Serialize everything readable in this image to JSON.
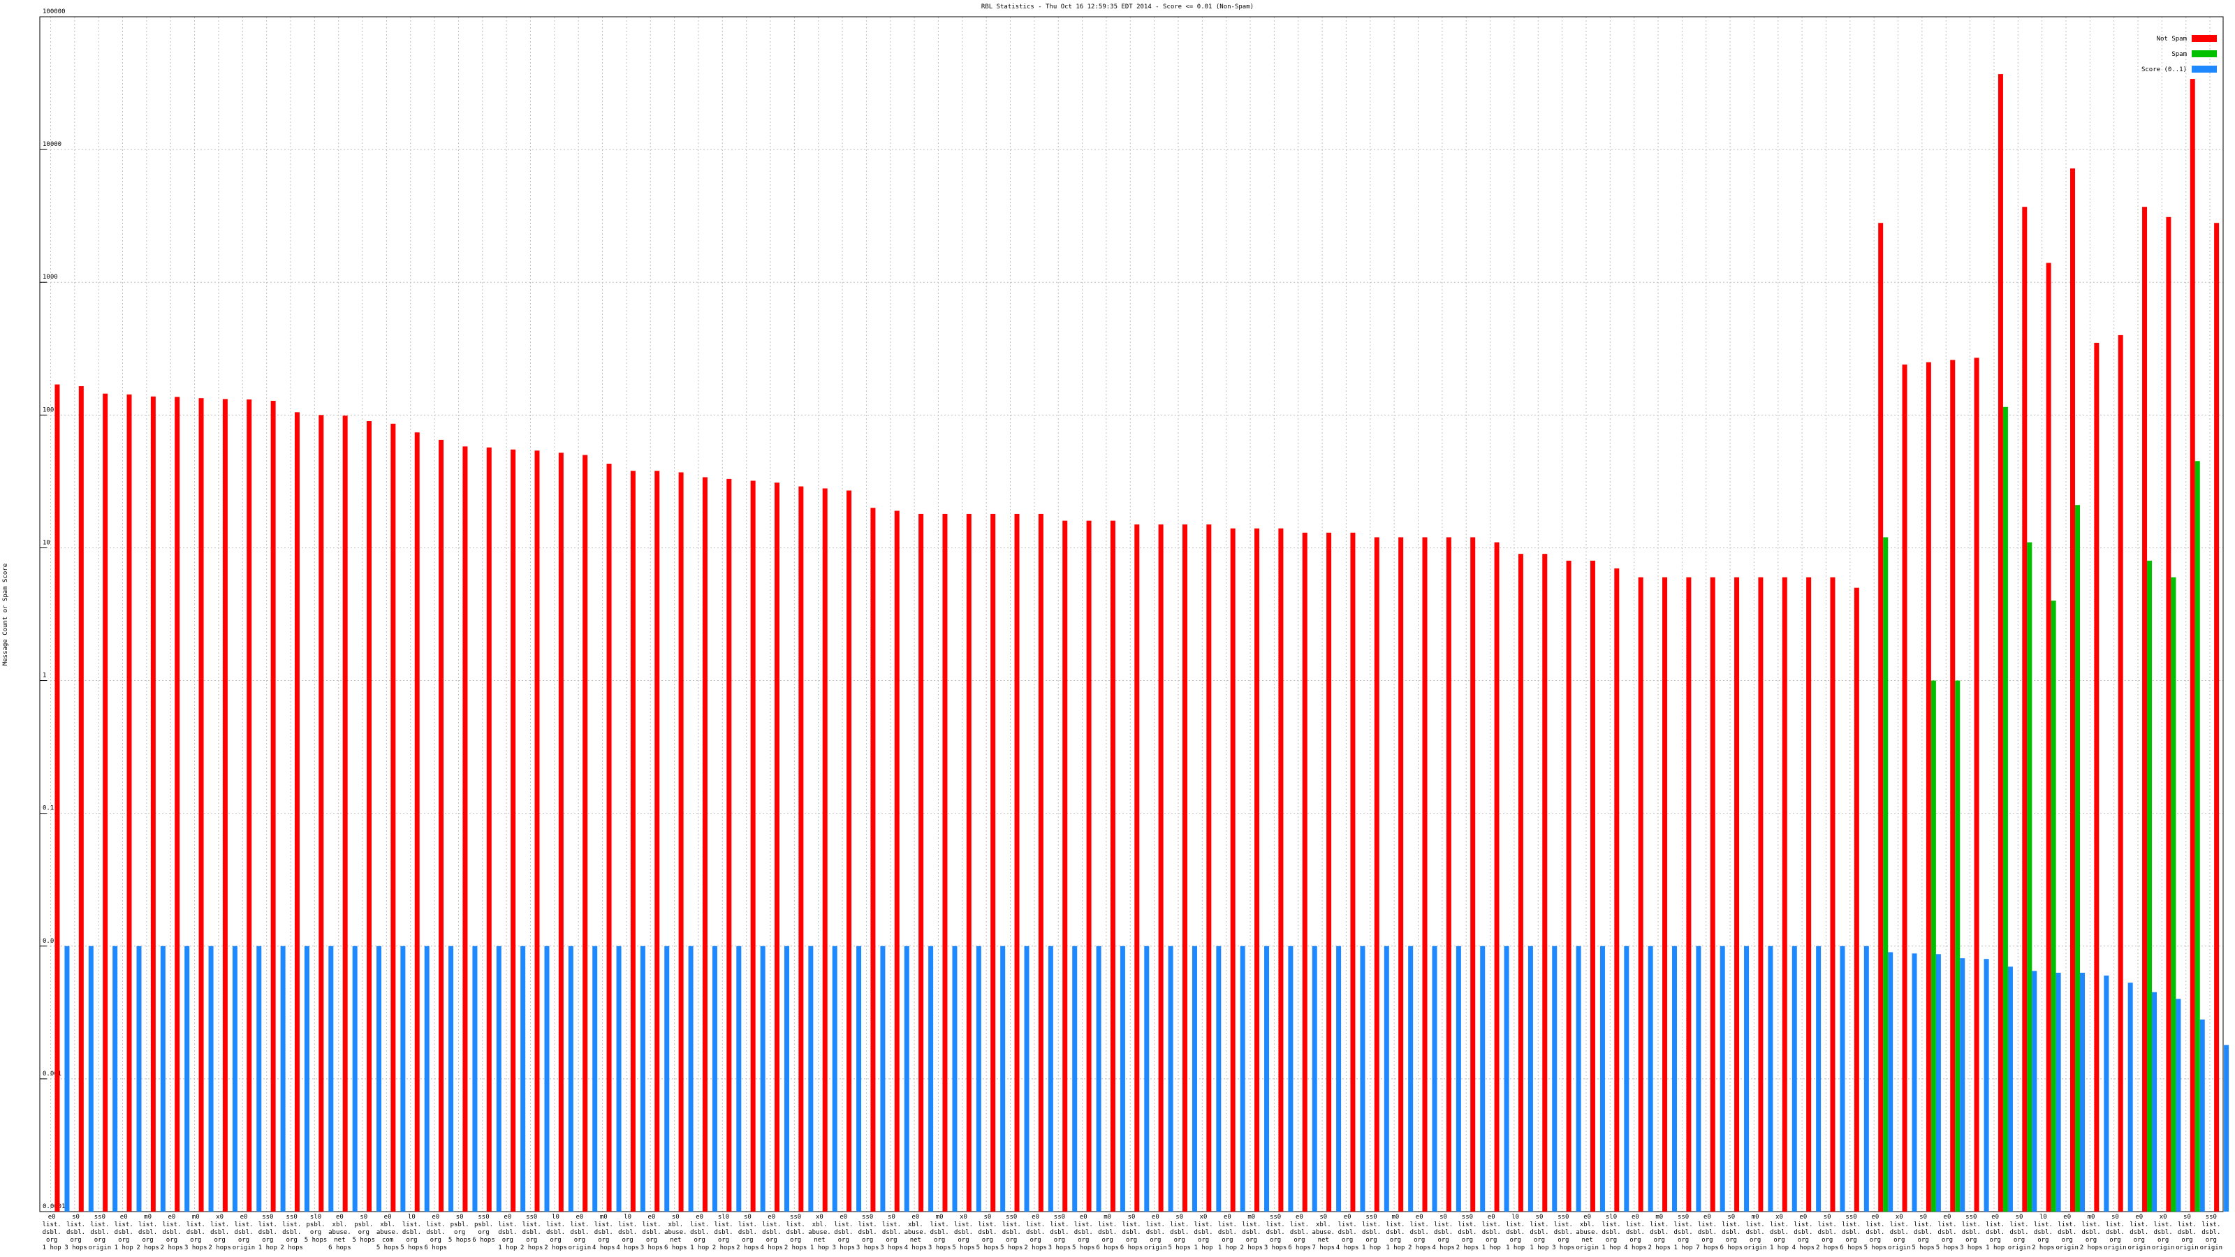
{
  "chart_data": {
    "type": "bar",
    "title": "RBL Statistics - Thu Oct 16 12:59:35 EDT 2014 - Score <= 0.01 (Non-Spam)",
    "y_label": "Message Count or Spam Score",
    "log_scale": true,
    "grid": true,
    "legend": "top-right",
    "ylim": [
      0.0001,
      100000
    ],
    "yticks": [
      0.0001,
      0.001,
      0.01,
      0.1,
      1,
      10,
      100,
      1000,
      10000,
      100000
    ],
    "categories": [
      "e0\nlist.\ndsbl.\norg\n1 hop",
      "s0\nlist.\ndsbl.\norg\n3 hops",
      "ss0\nlist.\ndsbl.\norg\norigin",
      "e0\nlist.\ndsbl.\norg\n1 hop",
      "m0\nlist.\ndsbl.\norg\n2 hops",
      "e0\nlist.\ndsbl.\norg\n2 hops",
      "m0\nlist.\ndsbl.\norg\n3 hops",
      "x0\nlist.\ndsbl.\norg\n2 hops",
      "e0\nlist.\ndsbl.\norg\norigin",
      "ss0\nlist.\ndsbl.\norg\n1 hop",
      "ss0\nlist.\ndsbl.\norg\n2 hops",
      "sl0\npsbl.\norg\n5 hops",
      "e0\nxbl.\nabuse.\nnet\n6 hops",
      "s0\npsbl.\norg\n5 hops",
      "e0\nxbl.\nabuse.\ncom\n5 hops",
      "l0\nlist.\ndsbl.\norg\n5 hops",
      "e0\nlist.\ndsbl.\norg\n6 hops",
      "s0\npsbl.\norg\n5 hops",
      "ss0\npsbl.\norg\n6 hops",
      "e0\nlist.\ndsbl.\norg\n1 hop",
      "ss0\nlist.\ndsbl.\norg\n2 hops",
      "l0\nlist.\ndsbl.\norg\n2 hops",
      "e0\nlist.\ndsbl.\norg\norigin",
      "m0\nlist.\ndsbl.\norg\n4 hops",
      "l0\nlist.\ndsbl.\norg\n4 hops",
      "e0\nlist.\ndsbl.\norg\n3 hops",
      "s0\nxbl.\nabuse.\nnet\n6 hops",
      "e0\nlist.\ndsbl.\norg\n1 hop",
      "sl0\nlist.\ndsbl.\norg\n2 hops",
      "s0\nlist.\ndsbl.\norg\n2 hops",
      "e0\nlist.\ndsbl.\norg\n4 hops",
      "ss0\nlist.\ndsbl.\norg\n2 hops",
      "x0\nxbl.\nabuse.\nnet\n1 hop",
      "e0\nlist.\ndsbl.\norg\n3 hops",
      "ss0\nlist.\ndsbl.\norg\n3 hops",
      "s0\nlist.\ndsbl.\norg\n3 hops",
      "e0\nxbl.\nabuse.\nnet\n4 hops",
      "m0\nlist.\ndsbl.\norg\n3 hops",
      "x0\nlist.\ndsbl.\norg\n5 hops",
      "s0\nlist.\ndsbl.\norg\n5 hops",
      "ss0\nlist.\ndsbl.\norg\n5 hops",
      "e0\nlist.\ndsbl.\norg\n2 hops",
      "ss0\nlist.\ndsbl.\norg\n3 hops",
      "e0\nlist.\ndsbl.\norg\n5 hops",
      "m0\nlist.\ndsbl.\norg\n6 hops",
      "s0\nlist.\ndsbl.\norg\n6 hops",
      "e0\nlist.\ndsbl.\norg\norigin",
      "s0\nlist.\ndsbl.\norg\n5 hops",
      "x0\nlist.\ndsbl.\norg\n1 hop",
      "e0\nlist.\ndsbl.\norg\n1 hop",
      "m0\nlist.\ndsbl.\norg\n2 hops",
      "ss0\nlist.\ndsbl.\norg\n3 hops",
      "e0\nlist.\ndsbl.\norg\n6 hops",
      "s0\nxbl.\nabuse.\nnet\n7 hops",
      "e0\nlist.\ndsbl.\norg\n4 hops",
      "ss0\nlist.\ndsbl.\norg\n1 hop",
      "m0\nlist.\ndsbl.\norg\n1 hop",
      "e0\nlist.\ndsbl.\norg\n2 hops",
      "s0\nlist.\ndsbl.\norg\n4 hops",
      "ss0\nlist.\ndsbl.\norg\n2 hops",
      "e0\nlist.\ndsbl.\norg\n1 hop",
      "l0\nlist.\ndsbl.\norg\n1 hop",
      "s0\nlist.\ndsbl.\norg\n1 hop",
      "ss0\nlist.\ndsbl.\norg\n3 hops",
      "e0\nxbl.\nabuse.\nnet\norigin",
      "sl0\nlist.\ndsbl.\norg\n1 hop",
      "e0\nlist.\ndsbl.\norg\n4 hops",
      "m0\nlist.\ndsbl.\norg\n2 hops",
      "ss0\nlist.\ndsbl.\norg\n1 hop",
      "e0\nlist.\ndsbl.\norg\n7 hops",
      "s0\nlist.\ndsbl.\norg\n6 hops",
      "m0\nlist.\ndsbl.\norg\norigin",
      "x0\nlist.\ndsbl.\norg\n1 hop",
      "e0\nlist.\ndsbl.\norg\n4 hops",
      "s0\nlist.\ndsbl.\norg\n2 hops",
      "ss0\nlist.\ndsbl.\norg\n6 hops",
      "e0\nlist.\ndsbl.\norg\n5 hops",
      "x0\nlist.\ndsbl.\norg\norigin",
      "s0\nlist.\ndsbl.\norg\n5 hops",
      "e0\nlist.\ndsbl.\norg\n5 hops",
      "ss0\nlist.\ndsbl.\norg\n3 hops",
      "e0\nlist.\ndsbl.\norg\n1 hop",
      "s0\nlist.\ndsbl.\norg\norigin",
      "l0\nlist.\ndsbl.\norg\n2 hops",
      "e0\nlist.\ndsbl.\norg\norigin",
      "m0\nlist.\ndsbl.\norg\n2 hops",
      "s0\nlist.\ndsbl.\norg\norigin",
      "e0\nlist.\ndsbl.\norg\norigin",
      "x0\nlist.\ndsbl.\norg\norigin",
      "s0\nlist.\ndsbl.\norg\norigin",
      "ss0\nlist.\ndsbl.\norg\norigin"
    ],
    "series": [
      {
        "name": "Not Spam",
        "color": "#ff0000",
        "values": [
          170,
          165,
          145,
          143,
          138,
          137,
          134,
          132,
          131,
          128,
          105,
          100,
          99,
          90,
          86,
          74,
          65,
          58,
          57,
          55,
          54,
          52,
          50,
          43,
          38,
          38,
          37,
          34,
          33,
          32,
          31,
          29,
          28,
          27,
          20,
          19,
          18,
          18,
          18,
          18,
          18,
          18,
          16,
          16,
          16,
          15,
          15,
          15,
          15,
          14,
          14,
          14,
          13,
          13,
          13,
          12,
          12,
          12,
          12,
          12,
          11,
          9,
          9,
          8,
          8,
          7,
          6,
          6,
          6,
          6,
          6,
          6,
          6,
          6,
          6,
          5,
          2800,
          240,
          250,
          260,
          270,
          37000,
          3700,
          1400,
          7200,
          350,
          400,
          3700,
          3100,
          34000,
          2800
        ]
      },
      {
        "name": "Spam",
        "color": "#00c000",
        "values": [
          null,
          null,
          null,
          null,
          null,
          null,
          null,
          null,
          null,
          null,
          null,
          null,
          null,
          null,
          null,
          null,
          null,
          null,
          null,
          null,
          null,
          null,
          null,
          null,
          null,
          null,
          null,
          null,
          null,
          null,
          null,
          null,
          null,
          null,
          null,
          null,
          null,
          null,
          null,
          null,
          null,
          null,
          null,
          null,
          null,
          null,
          null,
          null,
          null,
          null,
          null,
          null,
          null,
          null,
          null,
          null,
          null,
          null,
          null,
          null,
          null,
          null,
          null,
          null,
          null,
          null,
          null,
          null,
          null,
          null,
          null,
          null,
          null,
          null,
          null,
          null,
          12,
          null,
          1,
          1,
          null,
          115,
          11,
          4,
          21,
          null,
          null,
          8,
          6,
          45,
          null
        ]
      },
      {
        "name": "Score (0..1)",
        "color": "#1e88ff",
        "values": [
          0.01,
          0.01,
          0.01,
          0.01,
          0.01,
          0.01,
          0.01,
          0.01,
          0.01,
          0.01,
          0.01,
          0.01,
          0.01,
          0.01,
          0.01,
          0.01,
          0.01,
          0.01,
          0.01,
          0.01,
          0.01,
          0.01,
          0.01,
          0.01,
          0.01,
          0.01,
          0.01,
          0.01,
          0.01,
          0.01,
          0.01,
          0.01,
          0.01,
          0.01,
          0.01,
          0.01,
          0.01,
          0.01,
          0.01,
          0.01,
          0.01,
          0.01,
          0.01,
          0.01,
          0.01,
          0.01,
          0.01,
          0.01,
          0.01,
          0.01,
          0.01,
          0.01,
          0.01,
          0.01,
          0.01,
          0.01,
          0.01,
          0.01,
          0.01,
          0.01,
          0.01,
          0.01,
          0.01,
          0.01,
          0.01,
          0.01,
          0.01,
          0.01,
          0.01,
          0.01,
          0.01,
          0.01,
          0.01,
          0.01,
          0.01,
          0.01,
          0.009,
          0.0088,
          0.0087,
          0.0081,
          0.008,
          0.007,
          0.0065,
          0.0063,
          0.0063,
          0.006,
          0.0053,
          0.0045,
          0.004,
          0.0028,
          0.0018
        ]
      }
    ]
  }
}
